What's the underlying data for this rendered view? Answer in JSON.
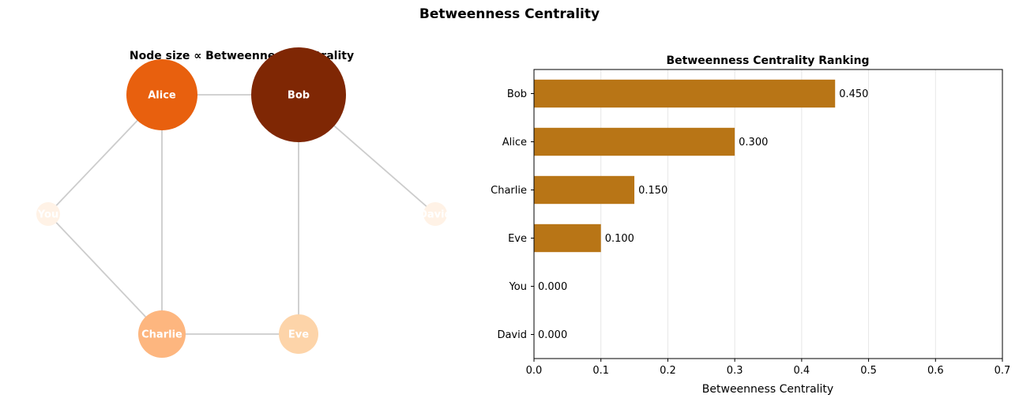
{
  "figure": {
    "suptitle": "Betweenness Centrality"
  },
  "chart_data": [
    {
      "type": "network",
      "title": "Node size ∝ Betweenness Centrality",
      "nodes": [
        {
          "label": "Alice",
          "value": 0.3,
          "color": "#e8600e"
        },
        {
          "label": "Bob",
          "value": 0.45,
          "color": "#7f2704"
        },
        {
          "label": "You",
          "value": 0.0,
          "color": "#fff2e6"
        },
        {
          "label": "David",
          "value": 0.0,
          "color": "#fff2e6"
        },
        {
          "label": "Charlie",
          "value": 0.15,
          "color": "#fdb67f"
        },
        {
          "label": "Eve",
          "value": 0.1,
          "color": "#fdd4a9"
        }
      ],
      "edges": [
        [
          "Alice",
          "Bob"
        ],
        [
          "Alice",
          "You"
        ],
        [
          "Alice",
          "Charlie"
        ],
        [
          "Bob",
          "David"
        ],
        [
          "Bob",
          "Eve"
        ],
        [
          "You",
          "Charlie"
        ],
        [
          "Charlie",
          "Eve"
        ]
      ],
      "edge_color": "#cccccc"
    },
    {
      "type": "bar",
      "orientation": "horizontal",
      "title": "Betweenness Centrality Ranking",
      "categories": [
        "Bob",
        "Alice",
        "Charlie",
        "Eve",
        "You",
        "David"
      ],
      "values": [
        0.45,
        0.3,
        0.15,
        0.1,
        0.0,
        0.0
      ],
      "data_labels": [
        "0.450",
        "0.300",
        "0.150",
        "0.100",
        "0.000",
        "0.000"
      ],
      "xlabel": "Betweenness Centrality",
      "xlim": [
        0,
        0.7
      ],
      "xticks": [
        "0.0",
        "0.1",
        "0.2",
        "0.3",
        "0.4",
        "0.5",
        "0.6",
        "0.7"
      ],
      "bar_color": "#b87516",
      "grid": "x"
    }
  ]
}
